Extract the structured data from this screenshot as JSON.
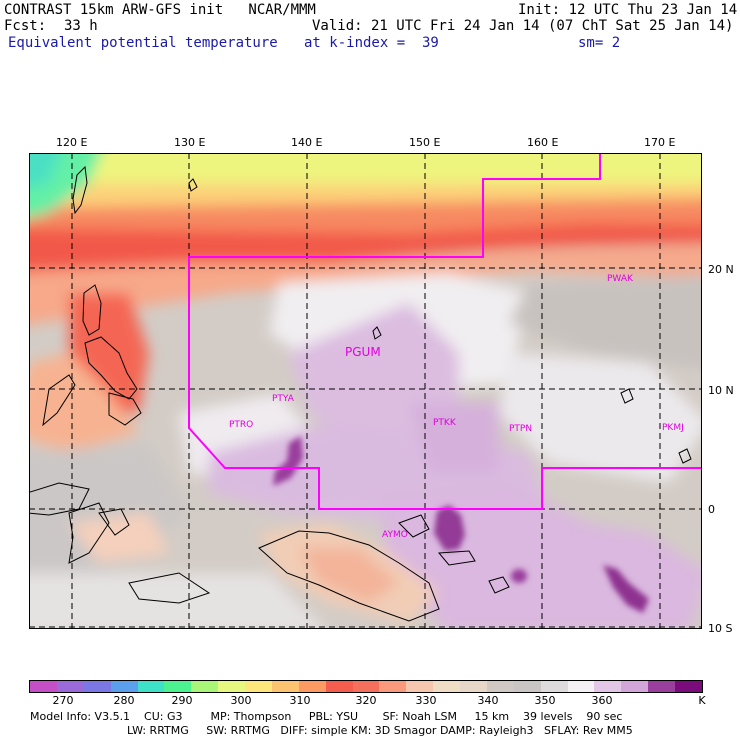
{
  "header": {
    "model": "CONTRAST 15km ARW-GFS init   NCAR/MMM",
    "fcst_label": "Fcst:",
    "fcst_value": "33 h",
    "init": "Init: 12 UTC Thu 23 Jan 14",
    "valid": "Valid: 21 UTC Fri 24 Jan 14 (07 ChT Sat 25 Jan 14)",
    "field": "Equivalent potential temperature",
    "level": "at k-index =  39",
    "smooth": "sm= 2"
  },
  "lon_labels": [
    "120 E",
    "130 E",
    "140 E",
    "150 E",
    "160 E",
    "170 E"
  ],
  "lat_labels": [
    "20 N",
    "10 N",
    "0",
    "10 S"
  ],
  "stations": [
    "PWAK",
    "PGUM",
    "PTYA",
    "PTRO",
    "PTKK",
    "PTPN",
    "PKMJ",
    "AYMO"
  ],
  "legend": {
    "ticks": [
      "270",
      "280",
      "290",
      "300",
      "310",
      "320",
      "330",
      "340",
      "350",
      "360",
      "K"
    ],
    "colors": [
      "#c44fc6",
      "#9a6ad9",
      "#7b78e6",
      "#5aa0ec",
      "#3fe0c8",
      "#4df290",
      "#a8f577",
      "#e6f880",
      "#fde77c",
      "#fcc470",
      "#fb9a62",
      "#f55d4f",
      "#f46f5c",
      "#f99a7c",
      "#f6c6ae",
      "#f0ddc5",
      "#e6d7c8",
      "#d0c8c3",
      "#c9c5c4",
      "#dddbdb",
      "#f4f0f4",
      "#e3c7e6",
      "#d2a6d8",
      "#9b3f9e",
      "#7a0c7b"
    ]
  },
  "footer": {
    "line1": "Model Info: V3.5.1    CU: G3        MP: Thompson     PBL: YSU       SF: Noah LSM     15 km    39 levels    90 sec",
    "line2": "LW: RRTMG     SW: RRTMG   DIFF: simple KM: 3D Smagor DAMP: Rayleigh3   SFLAY: Rev MM5"
  },
  "colors": {
    "domain_border": "#ff00ff",
    "station_text": "#e000e0",
    "grid": "#000000"
  }
}
